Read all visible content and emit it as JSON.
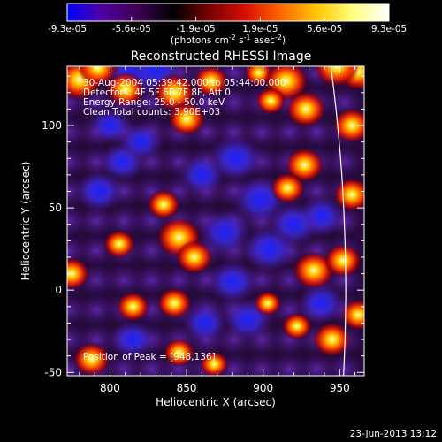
{
  "colorbar": {
    "tick_labels": [
      "-9.3e-05",
      "-5.6e-05",
      "-1.9e-05",
      "1.9e-05",
      "5.6e-05",
      "9.3e-05"
    ],
    "unit_pre": "(photons cm",
    "unit_exp1": "-2",
    "unit_mid1": " s",
    "unit_exp2": "-1",
    "unit_mid2": " asec",
    "unit_exp3": "-2",
    "unit_post": ")"
  },
  "title": "Reconstructed RHESSI Image",
  "annotations": [
    "30-Aug-2004 05:39:42.000 to 05:44:00.000",
    "Detectors: 4F 5F 6F 7F 8F, Att 0",
    "Energy Range: 25.0 - 50.0 keV",
    "Clean    Total counts: 3.90E+03"
  ],
  "peak_label": "Position of Peak = [948,136]",
  "timestamp": "23-Jun-2013 13:12",
  "chart_data": {
    "type": "heatmap",
    "title": "Reconstructed RHESSI Image",
    "xlabel": "Heliocentric X (arcsec)",
    "ylabel": "Heliocentric Y (arcsec)",
    "xlim": [
      772,
      966
    ],
    "ylim": [
      -52,
      136
    ],
    "x_ticks": [
      "800",
      "850",
      "900",
      "950"
    ],
    "y_ticks": [
      "-50",
      "0",
      "50",
      "100"
    ],
    "colorbar_range": [
      -9.3e-05,
      9.3e-05
    ],
    "colormap": [
      "#0000ff",
      "#5000a0",
      "#3c0050",
      "#000000",
      "#7a0000",
      "#d81000",
      "#ff6a00",
      "#ffc800",
      "#ffff80",
      "#ffffff"
    ],
    "limb_color": "#ffffff",
    "hot_spots": [
      {
        "x": 780,
        "y": 128,
        "v": 1.0
      },
      {
        "x": 792,
        "y": 135,
        "v": 0.8
      },
      {
        "x": 810,
        "y": 122,
        "v": 0.75
      },
      {
        "x": 842,
        "y": 120,
        "v": 0.85
      },
      {
        "x": 850,
        "y": 104,
        "v": 0.7
      },
      {
        "x": 866,
        "y": 127,
        "v": 0.6
      },
      {
        "x": 897,
        "y": 132,
        "v": 0.4
      },
      {
        "x": 915,
        "y": 127,
        "v": 0.95
      },
      {
        "x": 928,
        "y": 110,
        "v": 0.8
      },
      {
        "x": 905,
        "y": 115,
        "v": 0.45
      },
      {
        "x": 962,
        "y": 133,
        "v": 0.9
      },
      {
        "x": 958,
        "y": 100,
        "v": 0.75
      },
      {
        "x": 948,
        "y": 136,
        "v": 1.0
      },
      {
        "x": 927,
        "y": 76,
        "v": 0.75
      },
      {
        "x": 916,
        "y": 62,
        "v": 0.6
      },
      {
        "x": 958,
        "y": 58,
        "v": 0.7
      },
      {
        "x": 845,
        "y": 32,
        "v": 0.95
      },
      {
        "x": 835,
        "y": 52,
        "v": 0.55
      },
      {
        "x": 855,
        "y": 20,
        "v": 0.7
      },
      {
        "x": 806,
        "y": 28,
        "v": 0.5
      },
      {
        "x": 775,
        "y": 10,
        "v": 0.65
      },
      {
        "x": 815,
        "y": -10,
        "v": 0.55
      },
      {
        "x": 842,
        "y": -8,
        "v": 0.6
      },
      {
        "x": 788,
        "y": -42,
        "v": 0.7
      },
      {
        "x": 845,
        "y": -38,
        "v": 0.5
      },
      {
        "x": 933,
        "y": 12,
        "v": 0.85
      },
      {
        "x": 952,
        "y": 18,
        "v": 0.7
      },
      {
        "x": 922,
        "y": -22,
        "v": 0.45
      },
      {
        "x": 945,
        "y": -30,
        "v": 0.75
      },
      {
        "x": 962,
        "y": -15,
        "v": 0.6
      },
      {
        "x": 903,
        "y": -8,
        "v": 0.35
      },
      {
        "x": 868,
        "y": -45,
        "v": 0.4
      }
    ],
    "cold_spots": [
      {
        "x": 815,
        "y": 132,
        "v": 0.9
      },
      {
        "x": 830,
        "y": 134,
        "v": 0.8
      },
      {
        "x": 882,
        "y": 80,
        "v": 0.8
      },
      {
        "x": 898,
        "y": 55,
        "v": 0.85
      },
      {
        "x": 904,
        "y": 25,
        "v": 0.8
      },
      {
        "x": 875,
        "y": 35,
        "v": 0.7
      },
      {
        "x": 880,
        "y": 5,
        "v": 0.65
      },
      {
        "x": 890,
        "y": -18,
        "v": 0.6
      },
      {
        "x": 808,
        "y": 78,
        "v": 0.5
      },
      {
        "x": 793,
        "y": 60,
        "v": 0.6
      },
      {
        "x": 820,
        "y": 90,
        "v": 0.45
      },
      {
        "x": 860,
        "y": 70,
        "v": 0.55
      },
      {
        "x": 938,
        "y": 45,
        "v": 0.6
      },
      {
        "x": 920,
        "y": 40,
        "v": 0.7
      },
      {
        "x": 938,
        "y": -8,
        "v": 0.55
      },
      {
        "x": 862,
        "y": -20,
        "v": 0.5
      },
      {
        "x": 815,
        "y": -30,
        "v": 0.45
      },
      {
        "x": 800,
        "y": 100,
        "v": 0.4
      }
    ],
    "peak_position": [
      948,
      136
    ]
  }
}
